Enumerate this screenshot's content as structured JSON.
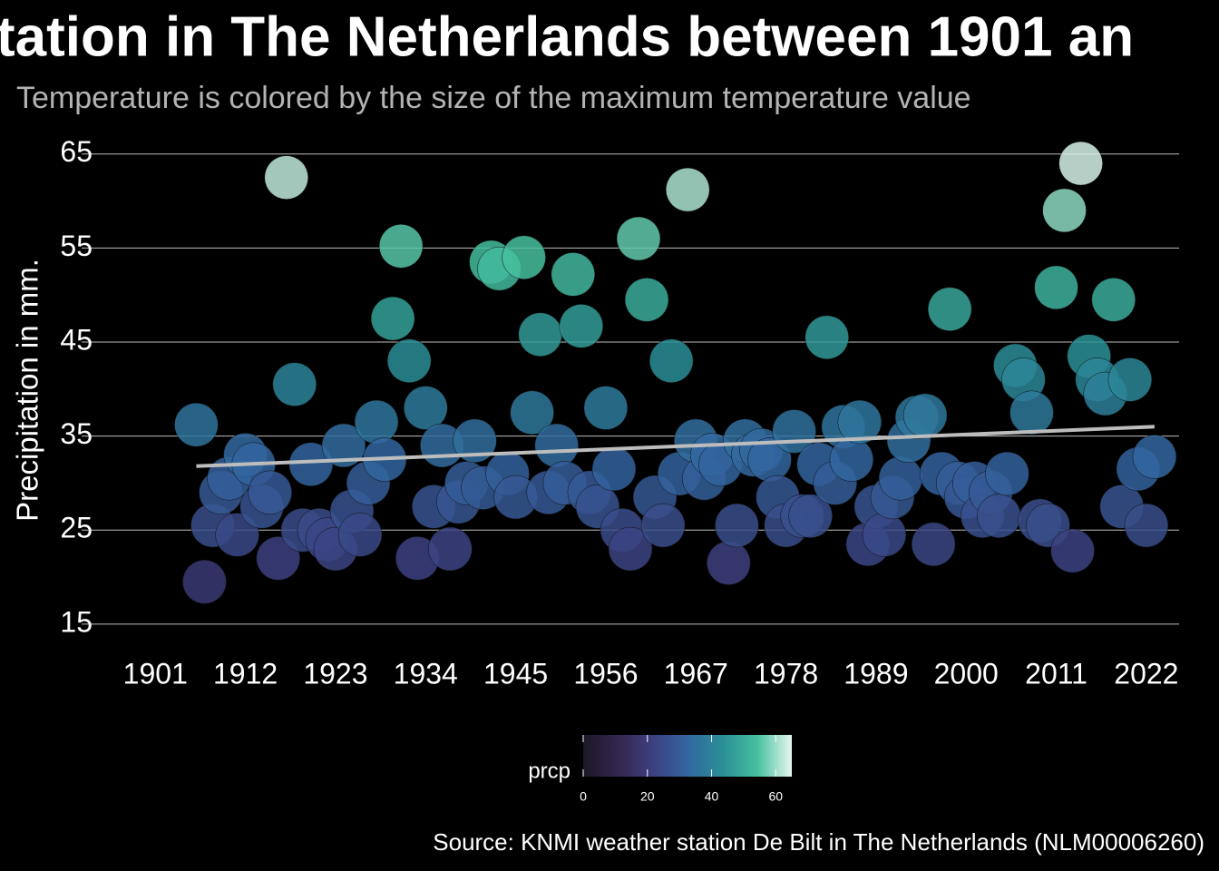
{
  "chart_data": {
    "type": "scatter",
    "title": "tation in The Netherlands between 1901 an",
    "subtitle": "Temperature is colored by the size of the maximum temperature value",
    "y_label": "Precipitation in mm.",
    "source": "Source: KNMI weather station De Bilt in The Netherlands (NLM00006260)",
    "x": [
      1906,
      1907,
      1908,
      1909,
      1910,
      1911,
      1912,
      1913,
      1914,
      1915,
      1916,
      1917,
      1918,
      1919,
      1920,
      1921,
      1922,
      1923,
      1924,
      1925,
      1926,
      1927,
      1928,
      1929,
      1930,
      1931,
      1932,
      1933,
      1934,
      1935,
      1936,
      1937,
      1938,
      1939,
      1940,
      1941,
      1942,
      1943,
      1944,
      1945,
      1946,
      1947,
      1948,
      1949,
      1950,
      1951,
      1952,
      1953,
      1954,
      1955,
      1956,
      1957,
      1958,
      1959,
      1960,
      1961,
      1962,
      1963,
      1964,
      1965,
      1966,
      1967,
      1968,
      1969,
      1970,
      1971,
      1972,
      1973,
      1974,
      1975,
      1976,
      1977,
      1978,
      1979,
      1980,
      1981,
      1982,
      1983,
      1984,
      1985,
      1986,
      1987,
      1988,
      1989,
      1990,
      1991,
      1992,
      1993,
      1994,
      1995,
      1996,
      1997,
      1998,
      1999,
      2000,
      2001,
      2002,
      2003,
      2004,
      2005,
      2006,
      2007,
      2008,
      2009,
      2010,
      2011,
      2012,
      2013,
      2014,
      2015,
      2016,
      2017,
      2018,
      2019,
      2020,
      2021,
      2022,
      2023
    ],
    "values": [
      36.2,
      19.5,
      25.5,
      29,
      30.5,
      24.5,
      33,
      32,
      27.5,
      29,
      22,
      62.5,
      40.5,
      25,
      32,
      25,
      24,
      23,
      34,
      27,
      24.5,
      30,
      36.5,
      32.5,
      47.5,
      55.2,
      43,
      22,
      38,
      27.5,
      34,
      23,
      28,
      30,
      34.5,
      29.5,
      53.5,
      52.8,
      31,
      28.5,
      54,
      37.5,
      45.8,
      29,
      34,
      30,
      52.2,
      46.7,
      29,
      27.5,
      38,
      31.5,
      25,
      23,
      56,
      49.5,
      28.5,
      25.5,
      43,
      31,
      61.2,
      34.5,
      30.5,
      33,
      32,
      21.5,
      25.5,
      34.5,
      33,
      33.5,
      32.5,
      28.5,
      25.5,
      35.5,
      26.5,
      26.5,
      32,
      45.5,
      30,
      36,
      32.5,
      36.5,
      23.5,
      27.5,
      24.5,
      28.5,
      30.5,
      34.5,
      37,
      37.2,
      23.5,
      31,
      48.5,
      30,
      28.5,
      30,
      26.5,
      29,
      26.5,
      31,
      42.5,
      41,
      37.5,
      26,
      25.5,
      50.8,
      59,
      22.8,
      64,
      43.5,
      41,
      39.5,
      49.5,
      27.5,
      41,
      31.5,
      25.5,
      32.8
    ],
    "xlim": [
      1892,
      2026
    ],
    "xticks": [
      1901,
      1912,
      1923,
      1934,
      1945,
      1956,
      1967,
      1978,
      1989,
      2000,
      2011,
      2022
    ],
    "ylim": [
      12,
      67
    ],
    "yticks": [
      15,
      25,
      35,
      45,
      55,
      65
    ],
    "grid": true,
    "trend": {
      "x": [
        1906,
        2023
      ],
      "values": [
        31.8,
        36.0
      ],
      "color": "#bdbdbd"
    },
    "colorbar": {
      "title": "prcp",
      "lim": [
        0,
        65
      ],
      "ticks": [
        0,
        20,
        40,
        60
      ],
      "colors": [
        "#1c1828",
        "#35264d",
        "#3d3f80",
        "#3266a0",
        "#2a8f96",
        "#47c09f",
        "#e4f7ee"
      ]
    }
  }
}
